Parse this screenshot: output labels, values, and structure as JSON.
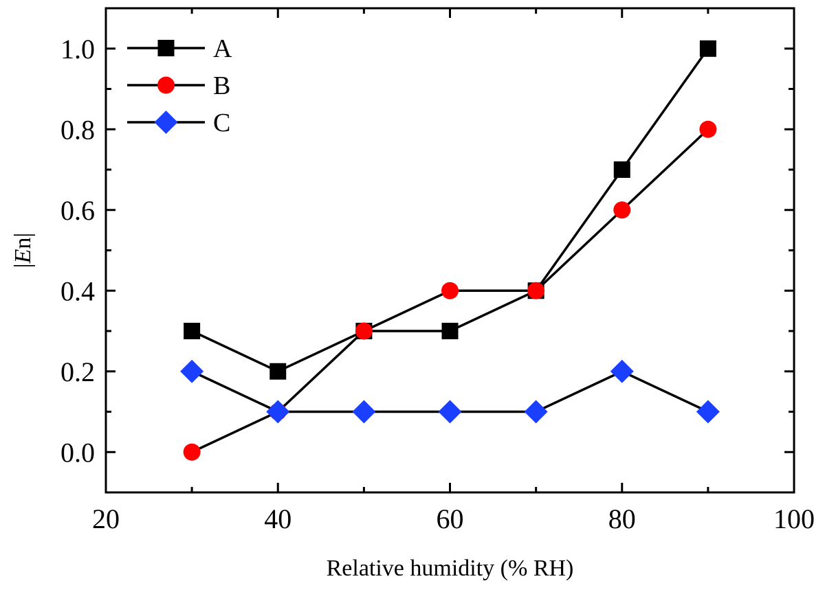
{
  "chart_data": {
    "type": "line",
    "title": "",
    "xlabel": "Relative humidity (% RH)",
    "ylabel_prefix": "|",
    "ylabel_italic": "E",
    "ylabel_suffix": "n|",
    "xlim": [
      20,
      100
    ],
    "ylim": [
      -0.1,
      1.1
    ],
    "xticks": [
      20,
      40,
      60,
      80,
      100
    ],
    "xtick_labels": [
      "20",
      "40",
      "60",
      "80",
      "100"
    ],
    "yticks": [
      0.0,
      0.2,
      0.4,
      0.6,
      0.8,
      1.0
    ],
    "ytick_labels": [
      "0.0",
      "0.2",
      "0.4",
      "0.6",
      "0.8",
      "1.0"
    ],
    "grid": false,
    "legend_position": "top-left",
    "x": [
      30,
      40,
      50,
      60,
      70,
      80,
      90
    ],
    "series": [
      {
        "name": "A",
        "marker": "square",
        "color": "#000000",
        "values": [
          0.3,
          0.2,
          0.3,
          0.3,
          0.4,
          0.7,
          1.0
        ]
      },
      {
        "name": "B",
        "marker": "circle",
        "color": "#ff0000",
        "values": [
          0.0,
          0.1,
          0.3,
          0.4,
          0.4,
          0.6,
          0.8
        ]
      },
      {
        "name": "C",
        "marker": "diamond",
        "color": "#1a3fff",
        "values": [
          0.2,
          0.1,
          0.1,
          0.1,
          0.1,
          0.2,
          0.1
        ]
      }
    ]
  }
}
